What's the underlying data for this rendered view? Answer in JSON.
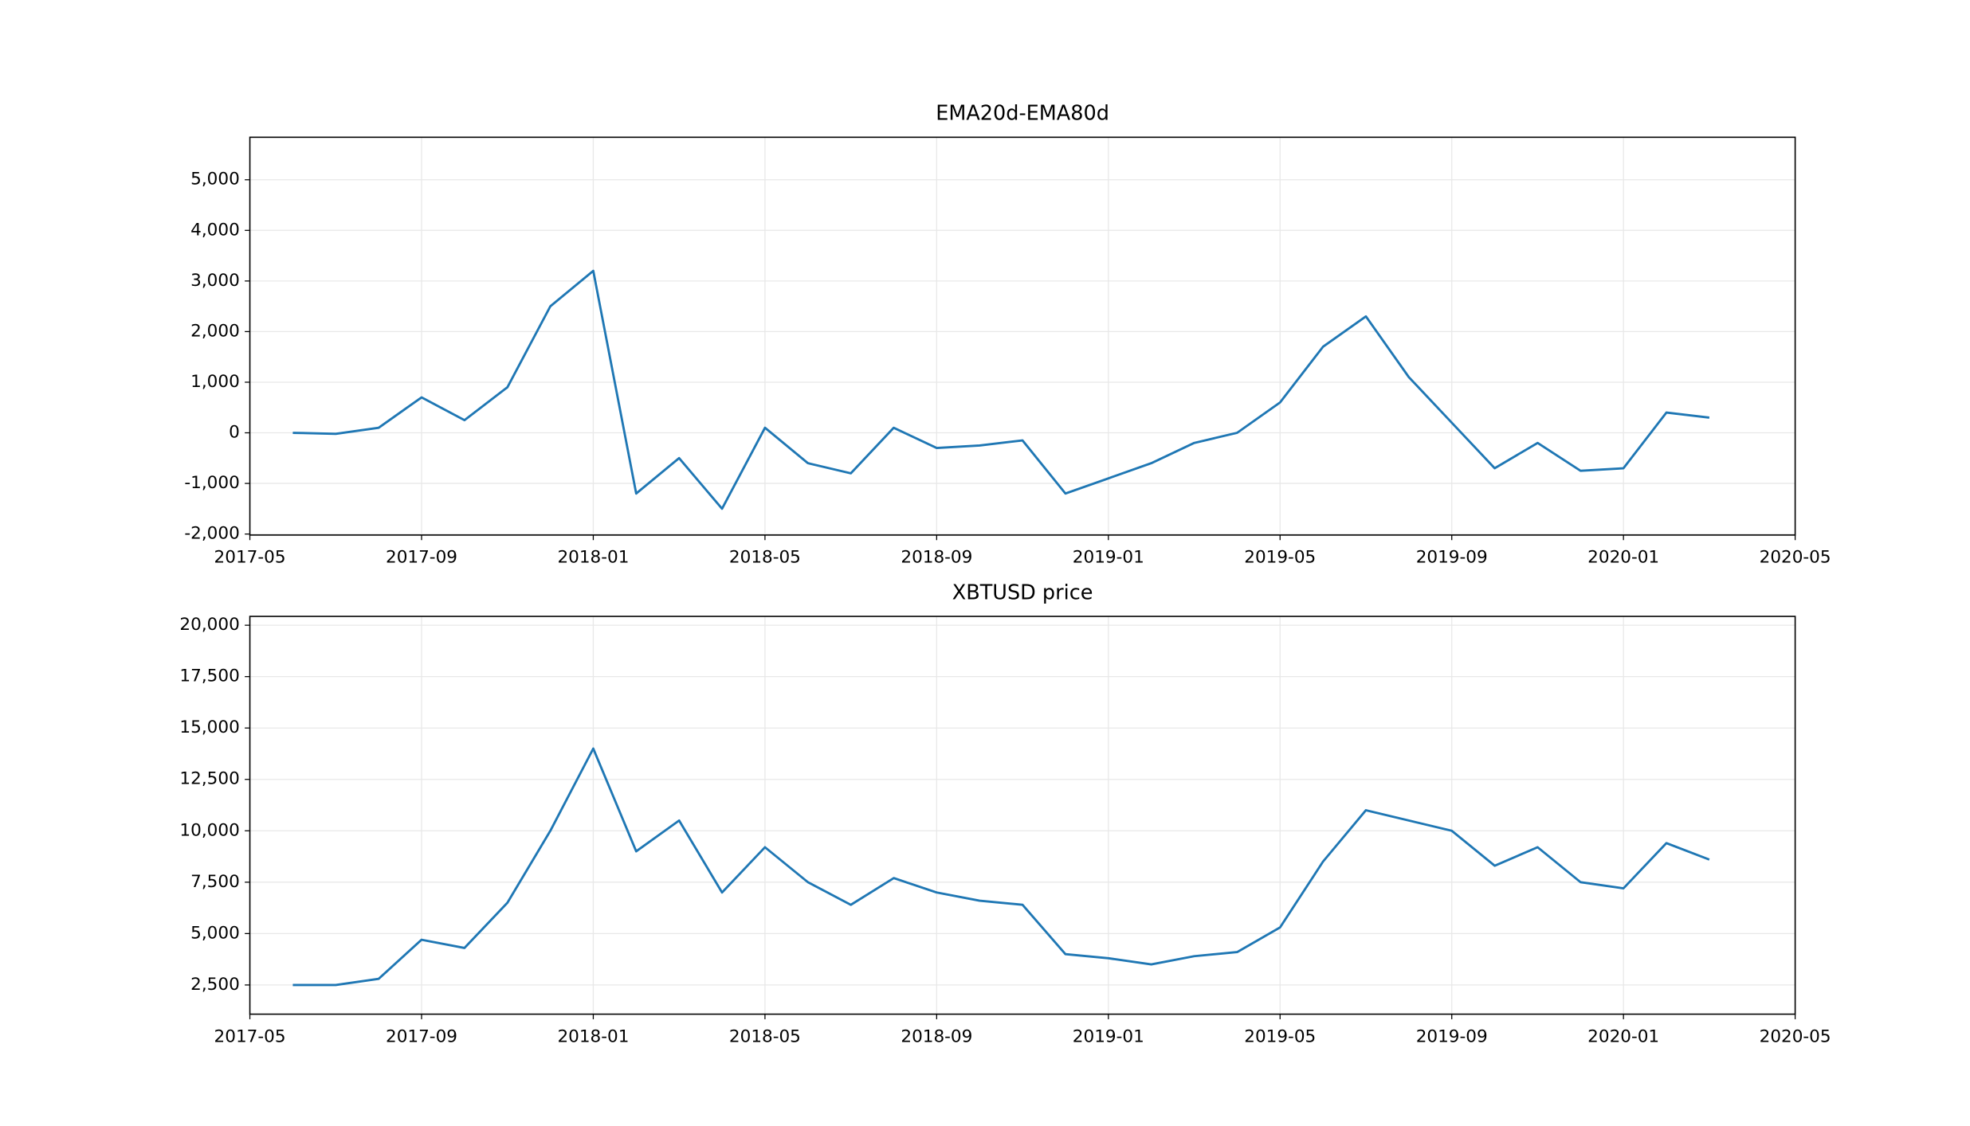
{
  "chart_data": [
    {
      "type": "line",
      "title": "EMA20d-EMA80d",
      "x": [
        "2017-06",
        "2017-07",
        "2017-08",
        "2017-09",
        "2017-10",
        "2017-11",
        "2017-12",
        "2018-01",
        "2018-02",
        "2018-03",
        "2018-04",
        "2018-05",
        "2018-06",
        "2018-07",
        "2018-08",
        "2018-09",
        "2018-10",
        "2018-11",
        "2018-12",
        "2019-01",
        "2019-02",
        "2019-03",
        "2019-04",
        "2019-05",
        "2019-06",
        "2019-07",
        "2019-08",
        "2019-09",
        "2019-10",
        "2019-11",
        "2019-12",
        "2020-01",
        "2020-02",
        "2020-03"
      ],
      "series": [
        {
          "name": "EMA20d-EMA80d",
          "color": "#1f77b4",
          "values": [
            0,
            -20,
            100,
            700,
            250,
            900,
            2500,
            3200,
            -1200,
            -500,
            -1500,
            100,
            -600,
            -800,
            100,
            -300,
            -250,
            -150,
            -1200,
            -900,
            -600,
            -200,
            0,
            600,
            1700,
            2300,
            1100,
            200,
            -700,
            -200,
            -750,
            -700,
            400,
            300
          ]
        }
      ],
      "xlim": [
        "2017-05",
        "2020-05"
      ],
      "xticks": [
        "2017-05",
        "2017-09",
        "2018-01",
        "2018-05",
        "2018-09",
        "2019-01",
        "2019-05",
        "2019-09",
        "2020-01",
        "2020-05"
      ],
      "ylim": [
        -2020,
        5840
      ],
      "yticks": [
        {
          "value": -2000,
          "label": "-2,000"
        },
        {
          "value": -1000,
          "label": "-1,000"
        },
        0,
        {
          "value": 1000,
          "label": "1,000"
        },
        {
          "value": 2000,
          "label": "2,000"
        },
        {
          "value": 3000,
          "label": "3,000"
        },
        {
          "value": 4000,
          "label": "4,000"
        },
        {
          "value": 5000,
          "label": "5,000"
        }
      ],
      "grid": true
    },
    {
      "type": "line",
      "title": "XBTUSD price",
      "x": [
        "2017-06",
        "2017-07",
        "2017-08",
        "2017-09",
        "2017-10",
        "2017-11",
        "2017-12",
        "2018-01",
        "2018-02",
        "2018-03",
        "2018-04",
        "2018-05",
        "2018-06",
        "2018-07",
        "2018-08",
        "2018-09",
        "2018-10",
        "2018-11",
        "2018-12",
        "2019-01",
        "2019-02",
        "2019-03",
        "2019-04",
        "2019-05",
        "2019-06",
        "2019-07",
        "2019-08",
        "2019-09",
        "2019-10",
        "2019-11",
        "2019-12",
        "2020-01",
        "2020-02",
        "2020-03"
      ],
      "series": [
        {
          "name": "XBTUSD price",
          "color": "#1f77b4",
          "values": [
            2500,
            2500,
            2800,
            4700,
            4300,
            6500,
            10000,
            14000,
            9000,
            10500,
            7000,
            9200,
            7500,
            6400,
            7700,
            7000,
            6600,
            6400,
            4000,
            3800,
            3500,
            3900,
            4100,
            5300,
            8500,
            11000,
            10500,
            10000,
            8300,
            9200,
            7500,
            7200,
            9400,
            8600
          ]
        }
      ],
      "xlim": [
        "2017-05",
        "2020-05"
      ],
      "xticks": [
        "2017-05",
        "2017-09",
        "2018-01",
        "2018-05",
        "2018-09",
        "2019-01",
        "2019-05",
        "2019-09",
        "2020-01",
        "2020-05"
      ],
      "ylim": [
        1080,
        20430
      ],
      "yticks": [
        {
          "value": 2500,
          "label": "2,500"
        },
        {
          "value": 5000,
          "label": "5,000"
        },
        {
          "value": 7500,
          "label": "7,500"
        },
        {
          "value": 10000,
          "label": "10,000"
        },
        {
          "value": 12500,
          "label": "12,500"
        },
        {
          "value": 15000,
          "label": "15,000"
        },
        {
          "value": 17500,
          "label": "17,500"
        },
        {
          "value": 20000,
          "label": "20,000"
        }
      ],
      "grid": true
    }
  ]
}
